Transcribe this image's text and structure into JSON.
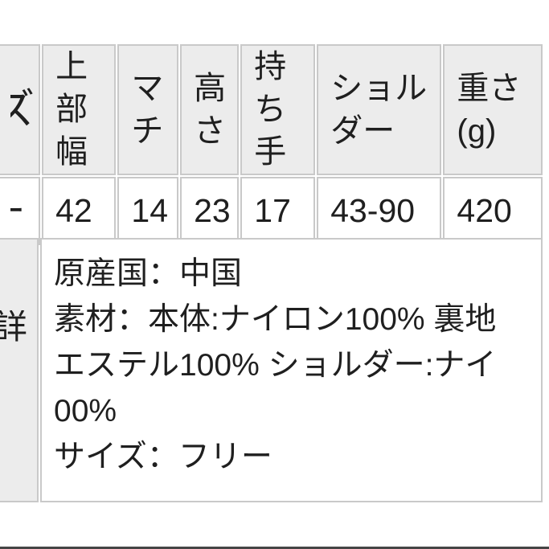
{
  "size_table": {
    "header_fragment": "ズ",
    "value_fragment": "ー",
    "columns": [
      {
        "header": [
          "上部",
          "幅"
        ],
        "value": "42"
      },
      {
        "header": [
          "マ",
          "チ"
        ],
        "value": "14"
      },
      {
        "header": [
          "高",
          "さ"
        ],
        "value": "23"
      },
      {
        "header": [
          "持ち",
          "手"
        ],
        "value": "17"
      },
      {
        "header": [
          "ショル",
          "ダー"
        ],
        "value": "43-90"
      },
      {
        "header": [
          "重さ",
          "(g)"
        ],
        "value": "420"
      }
    ]
  },
  "details_table": {
    "label_fragment": "詳",
    "lines": [
      "原産国：中国",
      "素材：本体:ナイロン100% 裏地",
      "エステル100% ショルダー:ナイ",
      "00%",
      "サイズ：フリー"
    ]
  },
  "colors": {
    "header_bg": "#ececec",
    "cell_bg": "#ffffff",
    "border": "#c9c9c9",
    "text": "#1f1f1f",
    "bottom_line": "#454545"
  }
}
